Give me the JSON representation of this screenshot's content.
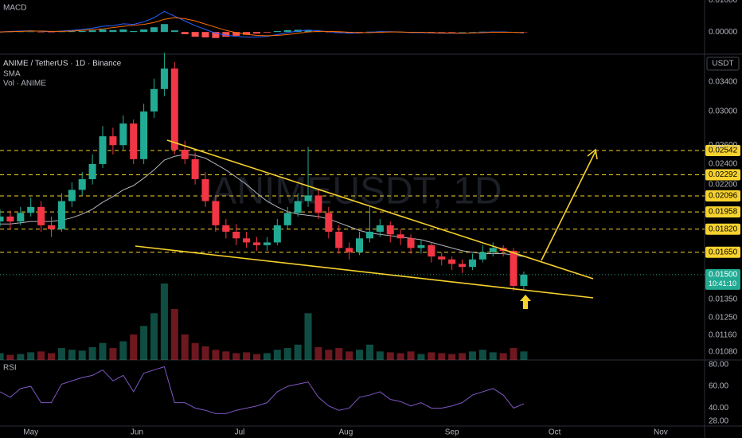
{
  "chart_data": [
    {
      "type": "candlestick",
      "title": "ANIME / TetherUS · 1D · Binance",
      "indicators": [
        "SMA",
        "Vol · ANIME"
      ],
      "watermark": "ANIMEUSDT, 1D",
      "y_axis_label": "USDT",
      "log_scale": true,
      "xlim": [
        0,
        68.6
      ],
      "xticks": [
        {
          "value": 3,
          "label": "May"
        },
        {
          "value": 13.33,
          "label": "Jun"
        },
        {
          "value": 23.33,
          "label": "Jul"
        },
        {
          "value": 33.67,
          "label": "Aug"
        },
        {
          "value": 44,
          "label": "Sep"
        },
        {
          "value": 54,
          "label": "Oct"
        },
        {
          "value": 64.33,
          "label": "Nov"
        }
      ],
      "ylim": [
        0.01044,
        0.03827
      ],
      "yticks": [
        {
          "value": 0.034,
          "label": "0.03400"
        },
        {
          "value": 0.03,
          "label": "0.03000"
        },
        {
          "value": 0.026,
          "label": "0.02600"
        },
        {
          "value": 0.024,
          "label": "0.02400"
        },
        {
          "value": 0.022,
          "label": "0.02200"
        },
        {
          "value": 0.0135,
          "label": "0.01350"
        },
        {
          "value": 0.0125,
          "label": "0.01250"
        },
        {
          "value": 0.0116,
          "label": "0.01160"
        },
        {
          "value": 0.0108,
          "label": "0.01080"
        }
      ],
      "levels": [
        {
          "value": 0.02542,
          "label": "0.02542"
        },
        {
          "value": 0.02292,
          "label": "0.02292"
        },
        {
          "value": 0.02096,
          "label": "0.02096"
        },
        {
          "value": 0.01958,
          "label": "0.01958"
        },
        {
          "value": 0.0182,
          "label": "0.01820"
        },
        {
          "value": 0.0165,
          "label": "0.01650"
        }
      ],
      "last_price": {
        "value": 0.015,
        "label": "0.01500"
      },
      "countdown": "10:41:10",
      "up_color": "#22ab94",
      "down_color": "#f23645",
      "sma_color": "#b2b5be",
      "level_color": "#f7d22e",
      "open": [
        0.0188,
        0.0192,
        0.0188,
        0.0195,
        0.02,
        0.0185,
        0.0182,
        0.0205,
        0.0215,
        0.0225,
        0.024,
        0.027,
        0.026,
        0.0285,
        0.0245,
        0.03,
        0.033,
        0.036,
        0.0255,
        0.0245,
        0.0225,
        0.0205,
        0.0185,
        0.018,
        0.0175,
        0.0172,
        0.017,
        0.0172,
        0.0185,
        0.0195,
        0.0205,
        0.021,
        0.0195,
        0.018,
        0.0168,
        0.0165,
        0.0175,
        0.018,
        0.0185,
        0.0178,
        0.0175,
        0.0168,
        0.017,
        0.0162,
        0.016,
        0.0157,
        0.0155,
        0.016,
        0.0165,
        0.0168,
        0.0166,
        0.0143
      ],
      "high": [
        0.0198,
        0.0197,
        0.02,
        0.0208,
        0.0205,
        0.0192,
        0.0212,
        0.0222,
        0.0232,
        0.025,
        0.0282,
        0.028,
        0.0295,
        0.029,
        0.031,
        0.0345,
        0.0385,
        0.037,
        0.0265,
        0.0252,
        0.0232,
        0.021,
        0.019,
        0.0186,
        0.018,
        0.0176,
        0.0176,
        0.019,
        0.02,
        0.0212,
        0.0258,
        0.0215,
        0.02,
        0.0185,
        0.0172,
        0.018,
        0.02,
        0.019,
        0.0188,
        0.0182,
        0.0178,
        0.0174,
        0.0172,
        0.0165,
        0.0162,
        0.016,
        0.0164,
        0.017,
        0.0172,
        0.017,
        0.0168,
        0.0152
      ],
      "low": [
        0.0184,
        0.0182,
        0.0185,
        0.0192,
        0.018,
        0.0176,
        0.018,
        0.02,
        0.021,
        0.022,
        0.0236,
        0.025,
        0.0255,
        0.024,
        0.024,
        0.0292,
        0.032,
        0.025,
        0.024,
        0.022,
        0.02,
        0.018,
        0.0175,
        0.017,
        0.0168,
        0.0166,
        0.0166,
        0.017,
        0.0182,
        0.0192,
        0.02,
        0.019,
        0.0175,
        0.0164,
        0.016,
        0.0163,
        0.0172,
        0.0176,
        0.0172,
        0.017,
        0.0164,
        0.0164,
        0.0158,
        0.0156,
        0.0153,
        0.0151,
        0.0153,
        0.0158,
        0.0162,
        0.0162,
        0.014,
        0.0141
      ],
      "close": [
        0.0192,
        0.0188,
        0.0195,
        0.02,
        0.0185,
        0.0182,
        0.0205,
        0.0215,
        0.0225,
        0.024,
        0.027,
        0.026,
        0.0285,
        0.0245,
        0.03,
        0.033,
        0.036,
        0.0255,
        0.0245,
        0.0225,
        0.0205,
        0.0185,
        0.018,
        0.0175,
        0.0172,
        0.017,
        0.0172,
        0.0185,
        0.0195,
        0.0205,
        0.021,
        0.0195,
        0.018,
        0.0168,
        0.0165,
        0.0175,
        0.018,
        0.0185,
        0.0178,
        0.0175,
        0.0168,
        0.017,
        0.0162,
        0.016,
        0.0157,
        0.0155,
        0.016,
        0.0165,
        0.0168,
        0.0166,
        0.0143,
        0.015
      ],
      "sma": [
        0.0186,
        0.0186,
        0.0187,
        0.0188,
        0.0188,
        0.0188,
        0.0189,
        0.0191,
        0.0194,
        0.0198,
        0.0204,
        0.0209,
        0.0215,
        0.0219,
        0.0226,
        0.0234,
        0.0244,
        0.0248,
        0.025,
        0.0249,
        0.0246,
        0.024,
        0.0234,
        0.0227,
        0.022,
        0.0212,
        0.0205,
        0.02,
        0.0196,
        0.0194,
        0.0193,
        0.0192,
        0.019,
        0.0187,
        0.0184,
        0.0181,
        0.0179,
        0.0178,
        0.0177,
        0.0176,
        0.0175,
        0.0174,
        0.0172,
        0.017,
        0.0168,
        0.0166,
        0.0165,
        0.0164,
        0.0164,
        0.0164,
        0.0163,
        0.0162
      ],
      "volume_ylim": [
        0,
        360
      ],
      "volume": [
        8,
        6,
        7,
        9,
        10,
        8,
        14,
        12,
        11,
        15,
        20,
        14,
        22,
        30,
        40,
        55,
        90,
        60,
        30,
        20,
        16,
        12,
        10,
        8,
        9,
        7,
        8,
        12,
        14,
        18,
        55,
        15,
        12,
        14,
        10,
        12,
        18,
        10,
        9,
        8,
        10,
        7,
        9,
        8,
        7,
        8,
        10,
        12,
        9,
        8,
        14,
        10
      ]
    },
    {
      "type": "macd",
      "title": "MACD",
      "ylim": [
        -0.007,
        0.0101
      ],
      "yticks": [
        {
          "value": 0.01,
          "label": "0.01000"
        },
        {
          "value": 0,
          "label": "0.00000"
        }
      ],
      "macd": [
        0,
        0.0002,
        0.0003,
        0.0004,
        0.0002,
        0.0001,
        0.0003,
        0.0005,
        0.0008,
        0.0012,
        0.0018,
        0.002,
        0.0026,
        0.0024,
        0.0032,
        0.0045,
        0.0065,
        0.005,
        0.0035,
        0.002,
        0.0008,
        -0.0004,
        -0.001,
        -0.0014,
        -0.0016,
        -0.0016,
        -0.0014,
        -0.0008,
        -0.0002,
        0.0003,
        0.0006,
        0.0004,
        0.0001,
        -0.0002,
        -0.0004,
        -0.0003,
        -0.0001,
        0.0001,
        0.0001,
        0,
        -0.0002,
        -0.0002,
        -0.0003,
        -0.0004,
        -0.0004,
        -0.0004,
        -0.0003,
        -0.0001,
        0,
        0,
        -0.0001,
        -0.0003
      ],
      "signal": [
        0,
        0.0001,
        0.0002,
        0.0003,
        0.0003,
        0.0002,
        0.0002,
        0.0003,
        0.0005,
        0.0007,
        0.001,
        0.0014,
        0.0018,
        0.0021,
        0.0024,
        0.003,
        0.004,
        0.0045,
        0.0042,
        0.0035,
        0.0025,
        0.0015,
        0.0005,
        -0.0002,
        -0.0007,
        -0.0011,
        -0.0012,
        -0.0011,
        -0.0008,
        -0.0004,
        0,
        0.0002,
        0.0002,
        0.0001,
        -0.0001,
        -0.0002,
        -0.0002,
        -0.0001,
        0,
        0,
        -0.0001,
        -0.0001,
        -0.0002,
        -0.0003,
        -0.0003,
        -0.0004,
        -0.0003,
        -0.0002,
        -0.0001,
        -0.0001,
        -0.0001,
        -0.0002
      ],
      "histogram": [
        0,
        0.0001,
        0.0001,
        0.0001,
        -0.0001,
        -0.0001,
        0.0001,
        0.0002,
        0.0003,
        0.0005,
        0.0008,
        0.0006,
        0.0008,
        0.0003,
        0.0008,
        0.0015,
        0.0025,
        0.0005,
        -0.0007,
        -0.0015,
        -0.0017,
        -0.0019,
        -0.0015,
        -0.0012,
        -0.0009,
        -0.0005,
        -0.0002,
        0.0003,
        0.0006,
        0.0007,
        0.0006,
        0.0002,
        -0.0001,
        -0.0003,
        -0.0003,
        -0.0001,
        0.0001,
        0.0002,
        0.0001,
        0,
        -0.0001,
        -0.0001,
        -0.0001,
        -0.0001,
        -0.0001,
        0,
        0,
        0.0001,
        0.0001,
        0.0001,
        0,
        -0.0001
      ],
      "macd_color": "#2962ff",
      "signal_color": "#ff6d00",
      "pos_color": "#26a69a",
      "neg_color": "#ff5252"
    },
    {
      "type": "line",
      "title": "RSI",
      "ylim": [
        25,
        82
      ],
      "yticks": [
        {
          "value": 80,
          "label": "80.00"
        },
        {
          "value": 60,
          "label": "60.00"
        },
        {
          "value": 40,
          "label": "40.00"
        },
        {
          "value": 28,
          "label": "28.00"
        }
      ],
      "color": "#7e57c2",
      "values": [
        55,
        50,
        58,
        60,
        45,
        45,
        62,
        65,
        68,
        70,
        75,
        65,
        70,
        55,
        72,
        75,
        78,
        45,
        45,
        40,
        38,
        35,
        35,
        38,
        40,
        42,
        45,
        55,
        60,
        62,
        64,
        50,
        42,
        38,
        40,
        50,
        52,
        55,
        48,
        46,
        42,
        45,
        40,
        40,
        42,
        45,
        52,
        55,
        58,
        52,
        40,
        44
      ]
    }
  ]
}
